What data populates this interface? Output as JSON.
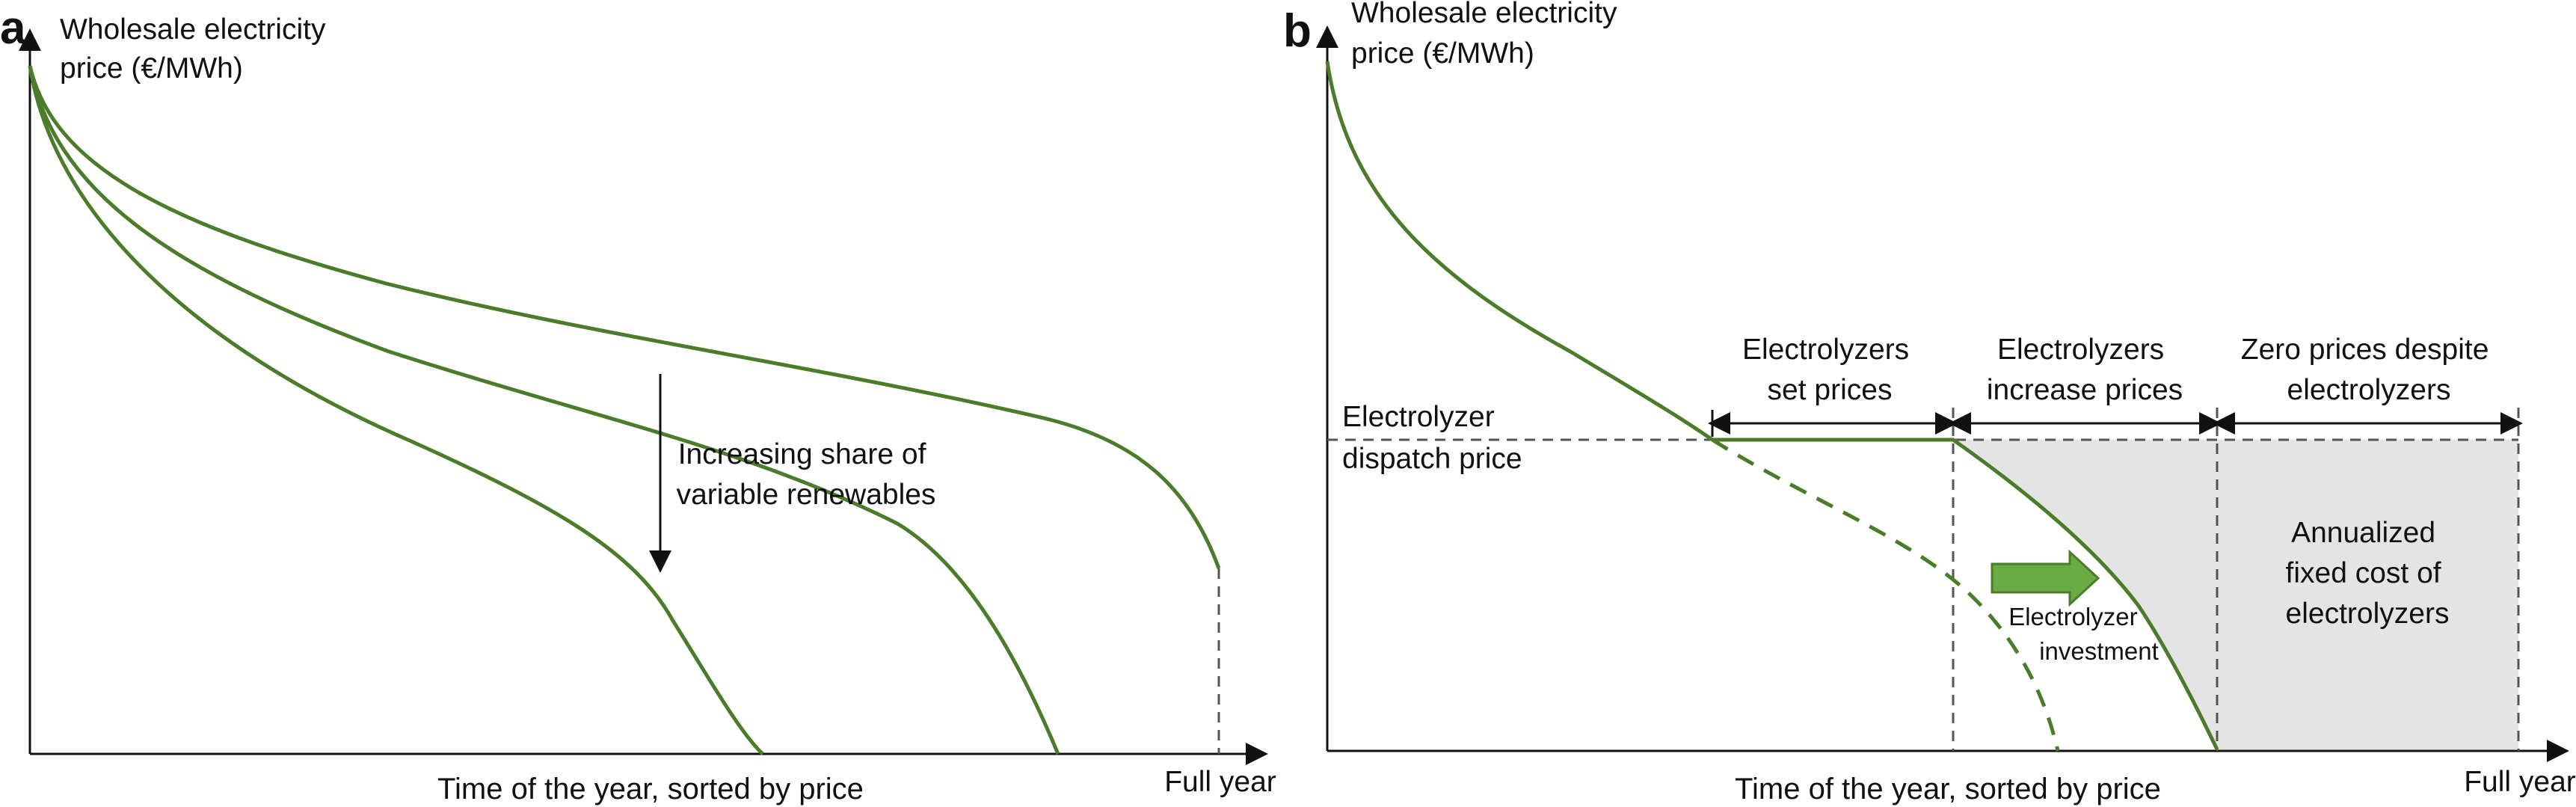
{
  "colors": {
    "curve": "#4a7c2a",
    "arrow_fill": "#6aab44",
    "shade": "#e4e4e4",
    "axis": "#111111",
    "guide": "#555555"
  },
  "panel_a": {
    "letter": "a",
    "y_label": [
      "Wholesale electricity",
      "price (€/MWh)"
    ],
    "x_label": "Time of the year, sorted by price",
    "x_end_label": "Full year",
    "annotation": [
      "Increasing share of",
      "variable renewables"
    ]
  },
  "panel_b": {
    "letter": "b",
    "y_label": [
      "Wholesale electricity",
      "price (€/MWh)"
    ],
    "x_label": "Time of the year, sorted by price",
    "x_end_label": "Full year",
    "dispatch_label": [
      "Electrolyzer",
      "dispatch price"
    ],
    "regions": [
      [
        "Electrolyzers",
        "set prices"
      ],
      [
        "Electrolyzers",
        "increase prices"
      ],
      [
        "Zero prices despite",
        "electrolyzers"
      ]
    ],
    "investment_label": [
      "Electrolyzer",
      "investment"
    ],
    "shaded_label": [
      "Annualized",
      "fixed cost of",
      "electrolyzers"
    ]
  }
}
